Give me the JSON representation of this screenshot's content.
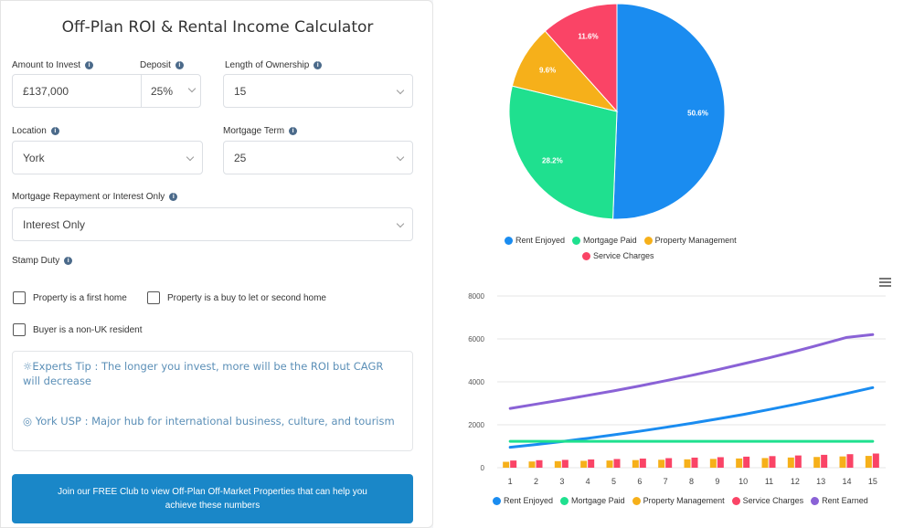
{
  "calculator": {
    "title": "Off-Plan ROI & Rental Income Calculator",
    "amount_label": "Amount to Invest",
    "amount_value": "£137,000",
    "deposit_label": "Deposit",
    "deposit_value": "25%",
    "length_label": "Length of Ownership",
    "length_value": "15",
    "location_label": "Location",
    "location_value": "York",
    "mortgage_term_label": "Mortgage Term",
    "mortgage_term_value": "25",
    "repayment_label": "Mortgage Repayment or Interest Only",
    "repayment_value": "Interest Only",
    "stamp_label": "Stamp Duty",
    "cb_first_home": "Property is a first home",
    "cb_buy_to_let": "Property is a buy to let or second home",
    "cb_non_uk": "Buyer is a non-UK resident",
    "tip_expert": "Experts Tip : The longer you invest, more will be the ROI but CAGR will decrease",
    "tip_usp": "York USP : Major hub for international business, culture, and tourism",
    "cta": "Join our FREE Club to view Off-Plan Off-Market Properties that can help you achieve these numbers"
  },
  "colors": {
    "rent_enjoyed": "#1a8cf0",
    "mortgage_paid": "#1fe08f",
    "property_management": "#f6b01a",
    "service_charges": "#fa4466",
    "rent_earned": "#8a62d6"
  },
  "chart_data": [
    {
      "type": "pie",
      "slices": [
        {
          "name": "Rent Enjoyed",
          "value": 50.6,
          "label": "50.6%"
        },
        {
          "name": "Mortgage Paid",
          "value": 28.2,
          "label": "28.2%"
        },
        {
          "name": "Property Management",
          "value": 9.6,
          "label": "9.6%"
        },
        {
          "name": "Service Charges",
          "value": 11.6,
          "label": "11.6%"
        }
      ],
      "legend": "bottom"
    },
    {
      "type": "line",
      "x": [
        1,
        2,
        3,
        4,
        5,
        6,
        7,
        8,
        9,
        10,
        11,
        12,
        13,
        14,
        15
      ],
      "ylim": [
        0,
        8000
      ],
      "yticks": [
        "0",
        "2000",
        "4000",
        "6000",
        "8000"
      ],
      "series": [
        {
          "name": "Rent Enjoyed",
          "type": "line",
          "values": [
            950,
            1080,
            1220,
            1370,
            1530,
            1700,
            1880,
            2070,
            2270,
            2480,
            2710,
            2950,
            3200,
            3460,
            3730
          ]
        },
        {
          "name": "Mortgage Paid",
          "type": "line",
          "values": [
            1230,
            1230,
            1230,
            1230,
            1230,
            1230,
            1230,
            1230,
            1230,
            1230,
            1230,
            1230,
            1230,
            1230,
            1230
          ]
        },
        {
          "name": "Property Management",
          "type": "bar",
          "values": [
            275,
            290,
            305,
            320,
            335,
            355,
            370,
            390,
            410,
            430,
            450,
            475,
            500,
            525,
            550
          ]
        },
        {
          "name": "Service Charges",
          "type": "bar",
          "values": [
            335,
            350,
            365,
            385,
            405,
            425,
            445,
            470,
            490,
            515,
            540,
            570,
            600,
            630,
            660
          ]
        },
        {
          "name": "Rent Earned",
          "type": "line",
          "values": [
            2760,
            2960,
            3160,
            3370,
            3580,
            3810,
            4050,
            4300,
            4560,
            4840,
            5120,
            5420,
            5740,
            6070,
            6200
          ]
        }
      ],
      "legend": "bottom"
    }
  ]
}
